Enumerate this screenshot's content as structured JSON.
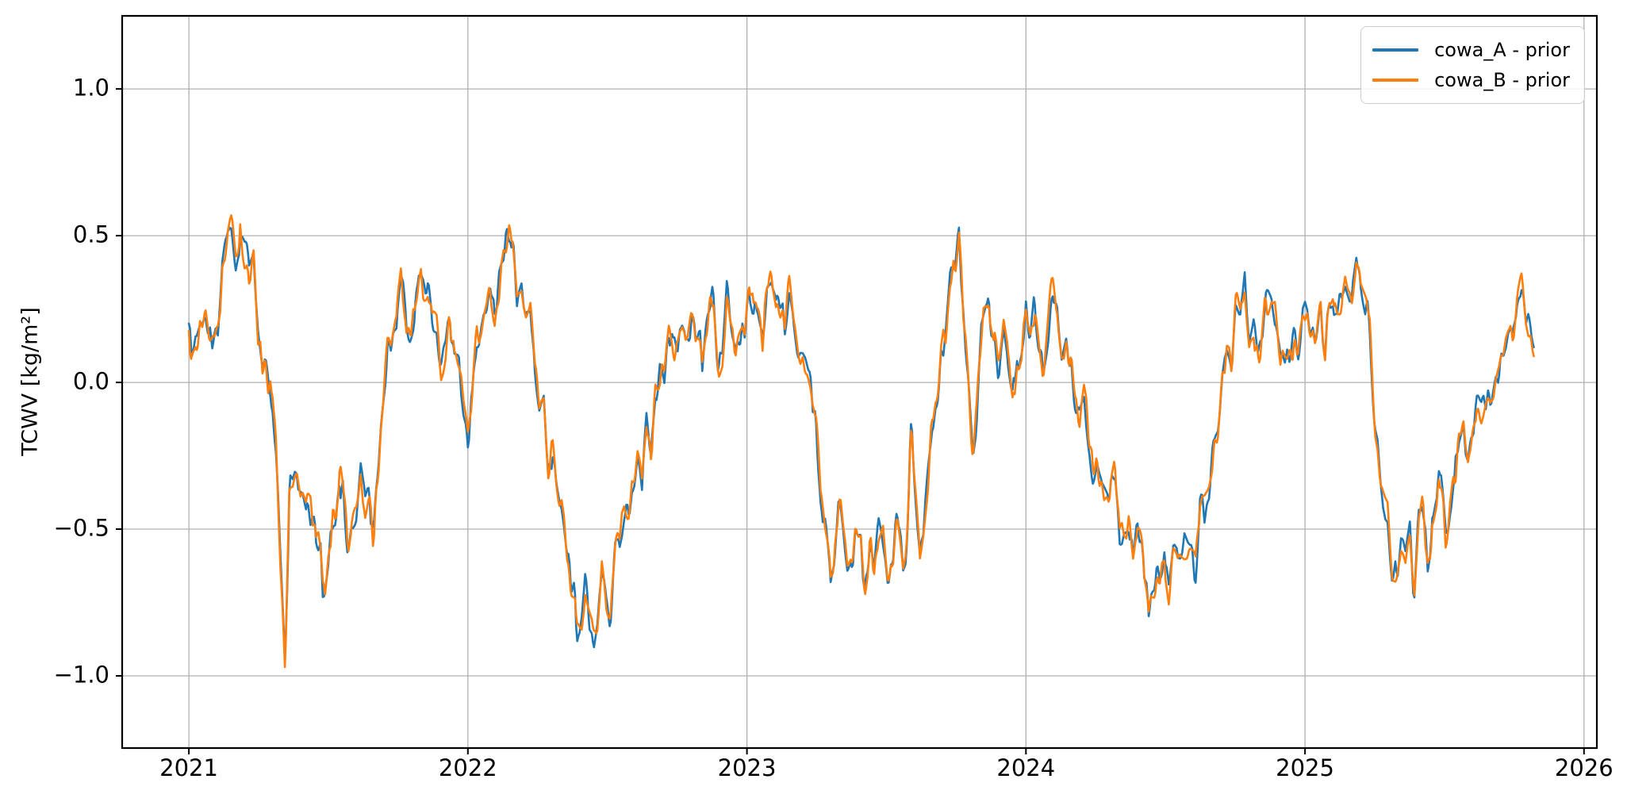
{
  "chart_data": {
    "type": "line",
    "title": "",
    "xlabel": "",
    "ylabel": "TCWV [kg/m²]",
    "xlim": [
      2020.761,
      2026.046
    ],
    "ylim": [
      -1.246,
      1.249
    ],
    "xticks": [
      2021,
      2022,
      2023,
      2024,
      2025,
      2026
    ],
    "xticklabels": [
      "2021",
      "2022",
      "2023",
      "2024",
      "2025",
      "2026"
    ],
    "yticks": [
      1.0,
      0.5,
      0.0,
      -0.5,
      -1.0
    ],
    "yticklabels": [
      "1.0",
      "0.5",
      "0.0",
      "−0.5",
      "−1.0"
    ],
    "grid": true,
    "legend_position": "upper right",
    "colors": {
      "grid": "#b0b0b0",
      "spine": "#000000",
      "background": "#ffffff"
    },
    "x_start": 2021.0,
    "x_end": 2025.82,
    "series": [
      {
        "name": "cowa_A",
        "label": "cowa_A - prior",
        "color": "#1f77b4",
        "seed": 11
      },
      {
        "name": "cowa_B",
        "label": "cowa_B - prior",
        "color": "#ff7f0e",
        "seed": 23
      }
    ],
    "base_keyframes_xy": [
      2021.0,
      0.2,
      2021.03,
      0.1,
      2021.06,
      0.24,
      2021.09,
      0.14,
      2021.12,
      0.32,
      2021.15,
      0.62,
      2021.18,
      0.38,
      2021.21,
      0.52,
      2021.24,
      0.28,
      2021.27,
      0.1,
      2021.3,
      -0.08,
      2021.33,
      -0.6,
      2021.345,
      -0.9,
      2021.36,
      -0.45,
      2021.39,
      -0.28,
      2021.42,
      -0.48,
      2021.45,
      -0.42,
      2021.48,
      -0.72,
      2021.51,
      -0.5,
      2021.54,
      -0.3,
      2021.57,
      -0.55,
      2021.6,
      -0.45,
      2021.63,
      -0.35,
      2021.66,
      -0.45,
      2021.69,
      -0.15,
      2021.72,
      0.1,
      2021.75,
      0.35,
      2021.78,
      0.18,
      2021.81,
      0.32,
      2021.84,
      0.25,
      2021.87,
      0.28,
      2021.9,
      0.1,
      2021.93,
      0.18,
      2021.96,
      0.05,
      2022.0,
      -0.12,
      2022.03,
      0.08,
      2022.06,
      0.2,
      2022.09,
      0.28,
      2022.12,
      0.33,
      2022.15,
      0.45,
      2022.18,
      0.35,
      2022.21,
      0.2,
      2022.24,
      0.1,
      2022.27,
      -0.1,
      2022.3,
      -0.3,
      2022.33,
      -0.48,
      2022.36,
      -0.6,
      2022.39,
      -0.85,
      2022.42,
      -0.62,
      2022.45,
      -0.95,
      2022.48,
      -0.7,
      2022.51,
      -0.78,
      2022.54,
      -0.55,
      2022.57,
      -0.48,
      2022.6,
      -0.38,
      2022.63,
      -0.25,
      2022.66,
      -0.18,
      2022.69,
      -0.02,
      2022.72,
      0.1,
      2022.75,
      0.18,
      2022.78,
      0.08,
      2022.81,
      0.22,
      2022.84,
      0.12,
      2022.87,
      0.25,
      2022.9,
      0.12,
      2022.93,
      0.22,
      2022.96,
      0.14,
      2023.0,
      0.2,
      2023.03,
      0.3,
      2023.06,
      0.18,
      2023.09,
      0.34,
      2023.12,
      0.24,
      2023.15,
      0.32,
      2023.18,
      0.15,
      2023.21,
      0.02,
      2023.24,
      -0.15,
      2023.27,
      -0.35,
      2023.3,
      -0.68,
      2023.33,
      -0.45,
      2023.36,
      -0.55,
      2023.39,
      -0.48,
      2023.42,
      -0.65,
      2023.45,
      -0.52,
      2023.48,
      -0.58,
      2023.51,
      -0.65,
      2023.54,
      -0.48,
      2023.57,
      -0.55,
      2023.59,
      -0.15,
      2023.62,
      -0.6,
      2023.65,
      -0.3,
      2023.68,
      -0.05,
      2023.71,
      0.15,
      2023.74,
      0.32,
      2023.76,
      0.4,
      2023.79,
      0.05,
      2023.81,
      -0.18,
      2023.84,
      0.22,
      2023.87,
      0.3,
      2023.9,
      0.02,
      2023.93,
      0.15,
      2023.96,
      -0.05,
      2024.0,
      0.18,
      2024.03,
      0.25,
      2024.06,
      0.1,
      2024.09,
      0.26,
      2024.12,
      0.16,
      2024.15,
      0.1,
      2024.18,
      0.0,
      2024.21,
      -0.12,
      2024.24,
      -0.25,
      2024.27,
      -0.35,
      2024.3,
      -0.45,
      2024.33,
      -0.38,
      2024.36,
      -0.55,
      2024.39,
      -0.48,
      2024.42,
      -0.62,
      2024.44,
      -0.85,
      2024.47,
      -0.6,
      2024.5,
      -0.72,
      2024.53,
      -0.58,
      2024.56,
      -0.66,
      2024.59,
      -0.6,
      2024.62,
      -0.5,
      2024.65,
      -0.35,
      2024.68,
      -0.15,
      2024.71,
      0.02,
      2024.74,
      0.15,
      2024.77,
      0.3,
      2024.8,
      0.2,
      2024.83,
      0.12,
      2024.86,
      0.32,
      2024.89,
      0.22,
      2024.92,
      0.12,
      2024.95,
      0.06,
      2024.98,
      0.12,
      2025.01,
      0.18,
      2025.04,
      0.25,
      2025.07,
      0.15,
      2025.1,
      0.3,
      2025.13,
      0.2,
      2025.16,
      0.35,
      2025.19,
      0.45,
      2025.22,
      0.25,
      2025.25,
      -0.1,
      2025.28,
      -0.3,
      2025.31,
      -0.55,
      2025.33,
      -0.7,
      2025.36,
      -0.48,
      2025.39,
      -0.65,
      2025.42,
      -0.45,
      2025.45,
      -0.6,
      2025.48,
      -0.35,
      2025.51,
      -0.45,
      2025.54,
      -0.3,
      2025.57,
      -0.25,
      2025.6,
      -0.18,
      2025.63,
      -0.1,
      2025.66,
      0.0,
      2025.69,
      0.06,
      2025.72,
      0.12,
      2025.75,
      0.2,
      2025.78,
      0.3,
      2025.82,
      0.2
    ],
    "noise": {
      "shared_seed": 3,
      "shared_amp": 0.1,
      "shared_scale": 0.016,
      "series_amp": 0.055,
      "series_scale": 0.009,
      "step": 0.004
    }
  }
}
